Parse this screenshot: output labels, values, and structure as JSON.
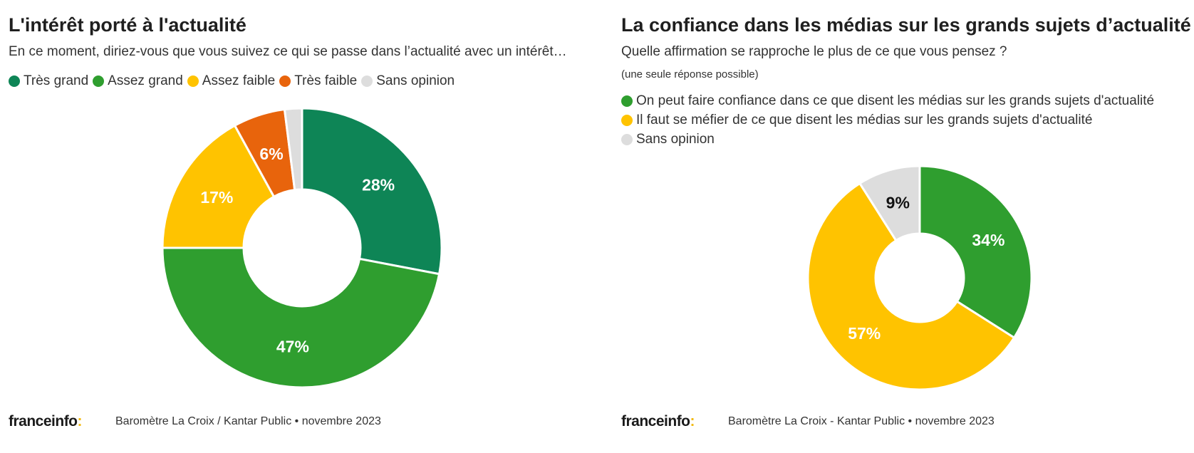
{
  "left": {
    "title": "L'intérêt porté à l'actualité",
    "subtitle": "En ce moment, diriez-vous que vous suivez ce qui se passe dans l’actualité avec un intérêt…",
    "legend": [
      {
        "label": "Très grand",
        "color": "#0e8556"
      },
      {
        "label": "Assez grand",
        "color": "#2f9e2f"
      },
      {
        "label": "Assez faible",
        "color": "#ffc300"
      },
      {
        "label": "Très faible",
        "color": "#e8640c"
      },
      {
        "label": "Sans opinion",
        "color": "#dddddd"
      }
    ],
    "logo": "franceinfo",
    "logo_colon": ":",
    "source": "Baromètre La Croix / Kantar Public • novembre 2023"
  },
  "right": {
    "title": "La confiance dans les médias sur les grands sujets d’actualité",
    "subtitle": "Quelle affirmation se rapproche le plus de ce que vous pensez ?",
    "note": "(une seule réponse possible)",
    "legend": [
      {
        "label": "On peut faire confiance dans ce que disent les médias sur les grands sujets d'actualité",
        "color": "#2f9e2f"
      },
      {
        "label": "Il faut se méfier de ce que disent les médias sur les grands sujets d'actualité",
        "color": "#ffc300"
      },
      {
        "label": "Sans opinion",
        "color": "#dddddd"
      }
    ],
    "logo": "franceinfo",
    "logo_colon": ":",
    "source": "Baromètre La Croix - Kantar Public • novembre 2023"
  },
  "chart_data": [
    {
      "type": "pie",
      "variant": "donut",
      "title": "L'intérêt porté à l'actualité",
      "categories": [
        "Très grand",
        "Assez grand",
        "Assez faible",
        "Très faible",
        "Sans opinion"
      ],
      "values": [
        28,
        47,
        17,
        6,
        2
      ],
      "labels": [
        "28%",
        "47%",
        "17%",
        "6%",
        ""
      ],
      "colors": [
        "#0e8556",
        "#2f9e2f",
        "#ffc300",
        "#e8640c",
        "#dddddd"
      ],
      "label_colors": [
        "#ffffff",
        "#ffffff",
        "#ffffff",
        "#ffffff",
        "#222222"
      ],
      "unit": "%"
    },
    {
      "type": "pie",
      "variant": "donut",
      "title": "La confiance dans les médias sur les grands sujets d’actualité",
      "categories": [
        "On peut faire confiance dans ce que disent les médias sur les grands sujets d'actualité",
        "Il faut se méfier de ce que disent les médias sur les grands sujets d'actualité",
        "Sans opinion"
      ],
      "values": [
        34,
        57,
        9
      ],
      "labels": [
        "34%",
        "57%",
        "9%"
      ],
      "colors": [
        "#2f9e2f",
        "#ffc300",
        "#dddddd"
      ],
      "label_colors": [
        "#ffffff",
        "#ffffff",
        "#111111"
      ],
      "unit": "%"
    }
  ]
}
